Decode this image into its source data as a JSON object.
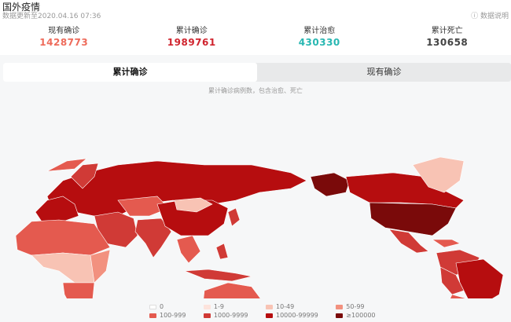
{
  "header": {
    "title": "国外疫情",
    "update_time": "数据更新至2020.04.16 07:36",
    "help_label": "数据说明",
    "help_icon": "question-circle-icon"
  },
  "stats": [
    {
      "label": "现有确诊",
      "value": "1428773",
      "color": "#ee6b5b"
    },
    {
      "label": "累计确诊",
      "value": "1989761",
      "color": "#d0242e"
    },
    {
      "label": "累计治愈",
      "value": "430330",
      "color": "#28b7b2"
    },
    {
      "label": "累计死亡",
      "value": "130658",
      "color": "#444444"
    }
  ],
  "tabs": [
    {
      "label": "累计确诊",
      "active": true
    },
    {
      "label": "现有确诊",
      "active": false
    }
  ],
  "map_note": "累计确诊病例数，包含治愈、死亡",
  "legend": [
    {
      "label": "0",
      "color": "#ffffff"
    },
    {
      "label": "1-9",
      "color": "#fde3dc"
    },
    {
      "label": "10-49",
      "color": "#f8c3b4"
    },
    {
      "label": "50-99",
      "color": "#f2917f"
    },
    {
      "label": "100-999",
      "color": "#e45a4f"
    },
    {
      "label": "1000-9999",
      "color": "#d03a36"
    },
    {
      "label": "10000-99999",
      "color": "#b60d0f"
    },
    {
      "label": "≥100000",
      "color": "#7a0a0a"
    }
  ]
}
